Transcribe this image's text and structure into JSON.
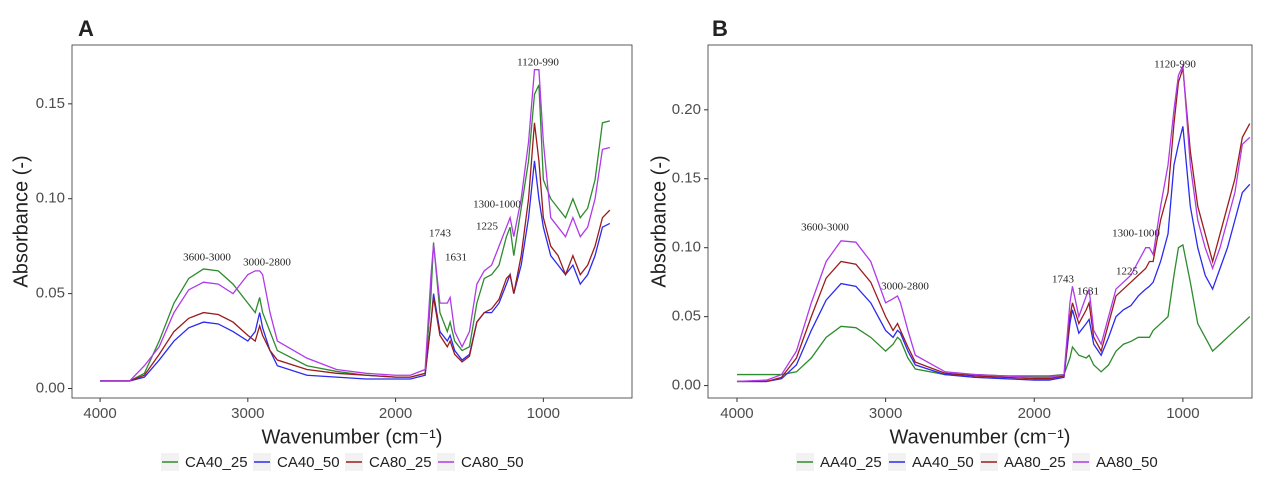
{
  "chart_data": [
    {
      "type": "line",
      "panel_label": "A",
      "x_label": "Wavenumber (cm⁻¹)",
      "y_label": "Absorbance (-)",
      "xlim": [
        4190,
        400
      ],
      "ylim": [
        -0.005,
        0.181
      ],
      "xticks": [
        4000,
        3000,
        2000,
        1000
      ],
      "yticks": [
        {
          "value": 0,
          "label": "0.00"
        },
        {
          "value": 0.05,
          "label": "0.05"
        },
        {
          "value": 0.1,
          "label": "0.10"
        },
        {
          "value": 0.15,
          "label": "0.15"
        }
      ],
      "legend": "bottom",
      "annotations": [
        "3600-3000",
        "3000-2800",
        "1743",
        "1631",
        "1225",
        "1300-1000",
        "1120-990"
      ],
      "x": [
        4000,
        3800,
        3700,
        3600,
        3500,
        3400,
        3300,
        3200,
        3100,
        3000,
        2950,
        2920,
        2900,
        2850,
        2800,
        2600,
        2400,
        2200,
        2000,
        1900,
        1800,
        1760,
        1743,
        1700,
        1650,
        1631,
        1600,
        1550,
        1500,
        1450,
        1400,
        1350,
        1300,
        1250,
        1225,
        1200,
        1150,
        1100,
        1060,
        1030,
        1000,
        950,
        900,
        850,
        800,
        750,
        700,
        650,
        600,
        550
      ],
      "series": [
        {
          "name": "CA40_25",
          "color": "#2e8b2e",
          "values": [
            0.004,
            0.004,
            0.008,
            0.025,
            0.045,
            0.058,
            0.063,
            0.062,
            0.055,
            0.045,
            0.04,
            0.048,
            0.04,
            0.03,
            0.02,
            0.012,
            0.009,
            0.007,
            0.006,
            0.006,
            0.008,
            0.05,
            0.077,
            0.04,
            0.03,
            0.035,
            0.025,
            0.02,
            0.022,
            0.045,
            0.058,
            0.06,
            0.065,
            0.08,
            0.085,
            0.07,
            0.095,
            0.12,
            0.155,
            0.16,
            0.11,
            0.1,
            0.095,
            0.09,
            0.1,
            0.09,
            0.095,
            0.11,
            0.14,
            0.141
          ]
        },
        {
          "name": "CA40_50",
          "color": "#2a2af0",
          "values": [
            0.004,
            0.004,
            0.006,
            0.015,
            0.025,
            0.032,
            0.035,
            0.034,
            0.03,
            0.025,
            0.03,
            0.04,
            0.032,
            0.02,
            0.012,
            0.007,
            0.006,
            0.005,
            0.005,
            0.005,
            0.007,
            0.035,
            0.05,
            0.03,
            0.025,
            0.028,
            0.02,
            0.015,
            0.018,
            0.035,
            0.04,
            0.04,
            0.045,
            0.055,
            0.06,
            0.05,
            0.065,
            0.09,
            0.12,
            0.1,
            0.085,
            0.07,
            0.065,
            0.06,
            0.065,
            0.055,
            0.06,
            0.07,
            0.085,
            0.087
          ]
        },
        {
          "name": "CA80_25",
          "color": "#9b1c1c",
          "values": [
            0.004,
            0.004,
            0.007,
            0.018,
            0.03,
            0.037,
            0.04,
            0.039,
            0.035,
            0.028,
            0.025,
            0.033,
            0.028,
            0.02,
            0.015,
            0.01,
            0.008,
            0.007,
            0.006,
            0.006,
            0.008,
            0.035,
            0.048,
            0.028,
            0.022,
            0.025,
            0.018,
            0.014,
            0.017,
            0.035,
            0.04,
            0.042,
            0.047,
            0.058,
            0.06,
            0.05,
            0.07,
            0.1,
            0.14,
            0.12,
            0.09,
            0.075,
            0.07,
            0.06,
            0.07,
            0.06,
            0.065,
            0.075,
            0.09,
            0.094
          ]
        },
        {
          "name": "CA80_50",
          "color": "#b03ae8",
          "values": [
            0.004,
            0.004,
            0.012,
            0.022,
            0.04,
            0.052,
            0.056,
            0.055,
            0.05,
            0.06,
            0.062,
            0.062,
            0.06,
            0.04,
            0.025,
            0.016,
            0.01,
            0.008,
            0.007,
            0.007,
            0.01,
            0.06,
            0.076,
            0.045,
            0.045,
            0.048,
            0.03,
            0.022,
            0.03,
            0.055,
            0.062,
            0.065,
            0.075,
            0.085,
            0.09,
            0.08,
            0.1,
            0.13,
            0.168,
            0.168,
            0.13,
            0.09,
            0.085,
            0.08,
            0.09,
            0.08,
            0.085,
            0.1,
            0.126,
            0.127
          ]
        }
      ]
    },
    {
      "type": "line",
      "panel_label": "B",
      "x_label": "Wavenumber (cm⁻¹)",
      "y_label": "Absorbance (-)",
      "xlim": [
        4195,
        535
      ],
      "ylim": [
        -0.009,
        0.247
      ],
      "xticks": [
        4000,
        3000,
        2000,
        1000
      ],
      "yticks": [
        {
          "value": 0,
          "label": "0.00"
        },
        {
          "value": 0.05,
          "label": "0.05"
        },
        {
          "value": 0.1,
          "label": "0.10"
        },
        {
          "value": 0.15,
          "label": "0.15"
        },
        {
          "value": 0.2,
          "label": "0.20"
        }
      ],
      "legend": "bottom",
      "annotations": [
        "3600-3000",
        "3000-2800",
        "1743",
        "1631",
        "1225",
        "1300-1000",
        "1120-990"
      ],
      "x": [
        4000,
        3800,
        3700,
        3600,
        3500,
        3400,
        3300,
        3200,
        3100,
        3000,
        2950,
        2920,
        2900,
        2850,
        2800,
        2600,
        2400,
        2200,
        2000,
        1900,
        1800,
        1760,
        1743,
        1700,
        1650,
        1631,
        1600,
        1550,
        1500,
        1450,
        1400,
        1350,
        1300,
        1250,
        1225,
        1200,
        1150,
        1100,
        1060,
        1030,
        1000,
        950,
        900,
        850,
        800,
        750,
        700,
        650,
        600,
        550
      ],
      "series": [
        {
          "name": "AA40_25",
          "color": "#2e8b2e",
          "values": [
            0.008,
            0.008,
            0.008,
            0.01,
            0.02,
            0.035,
            0.043,
            0.042,
            0.035,
            0.025,
            0.03,
            0.035,
            0.033,
            0.02,
            0.012,
            0.008,
            0.008,
            0.007,
            0.007,
            0.007,
            0.008,
            0.02,
            0.028,
            0.022,
            0.02,
            0.022,
            0.015,
            0.01,
            0.015,
            0.025,
            0.03,
            0.032,
            0.035,
            0.035,
            0.035,
            0.04,
            0.045,
            0.05,
            0.08,
            0.1,
            0.102,
            0.075,
            0.045,
            0.035,
            0.025,
            0.03,
            0.035,
            0.04,
            0.045,
            0.05
          ]
        },
        {
          "name": "AA40_50",
          "color": "#2a2af0",
          "values": [
            0.003,
            0.003,
            0.005,
            0.015,
            0.04,
            0.062,
            0.074,
            0.072,
            0.06,
            0.04,
            0.035,
            0.04,
            0.038,
            0.025,
            0.015,
            0.008,
            0.006,
            0.005,
            0.004,
            0.004,
            0.006,
            0.045,
            0.055,
            0.038,
            0.045,
            0.048,
            0.03,
            0.022,
            0.035,
            0.05,
            0.055,
            0.058,
            0.065,
            0.07,
            0.072,
            0.075,
            0.09,
            0.11,
            0.16,
            0.175,
            0.188,
            0.13,
            0.1,
            0.08,
            0.07,
            0.085,
            0.1,
            0.12,
            0.14,
            0.146
          ]
        },
        {
          "name": "AA80_25",
          "color": "#9b1c1c",
          "values": [
            0.003,
            0.003,
            0.006,
            0.02,
            0.05,
            0.078,
            0.09,
            0.088,
            0.075,
            0.05,
            0.04,
            0.045,
            0.04,
            0.028,
            0.017,
            0.009,
            0.007,
            0.006,
            0.005,
            0.005,
            0.007,
            0.05,
            0.06,
            0.045,
            0.055,
            0.06,
            0.035,
            0.025,
            0.045,
            0.065,
            0.07,
            0.075,
            0.08,
            0.085,
            0.09,
            0.09,
            0.12,
            0.14,
            0.19,
            0.22,
            0.23,
            0.17,
            0.13,
            0.11,
            0.09,
            0.11,
            0.13,
            0.15,
            0.18,
            0.19
          ]
        },
        {
          "name": "AA80_50",
          "color": "#b03ae8",
          "values": [
            0.003,
            0.004,
            0.008,
            0.025,
            0.06,
            0.09,
            0.105,
            0.104,
            0.09,
            0.06,
            0.063,
            0.065,
            0.06,
            0.04,
            0.022,
            0.01,
            0.008,
            0.007,
            0.006,
            0.006,
            0.008,
            0.06,
            0.072,
            0.05,
            0.065,
            0.07,
            0.04,
            0.03,
            0.05,
            0.07,
            0.075,
            0.08,
            0.09,
            0.1,
            0.1,
            0.095,
            0.13,
            0.16,
            0.2,
            0.225,
            0.232,
            0.16,
            0.12,
            0.1,
            0.085,
            0.1,
            0.12,
            0.14,
            0.175,
            0.18
          ]
        }
      ]
    }
  ]
}
